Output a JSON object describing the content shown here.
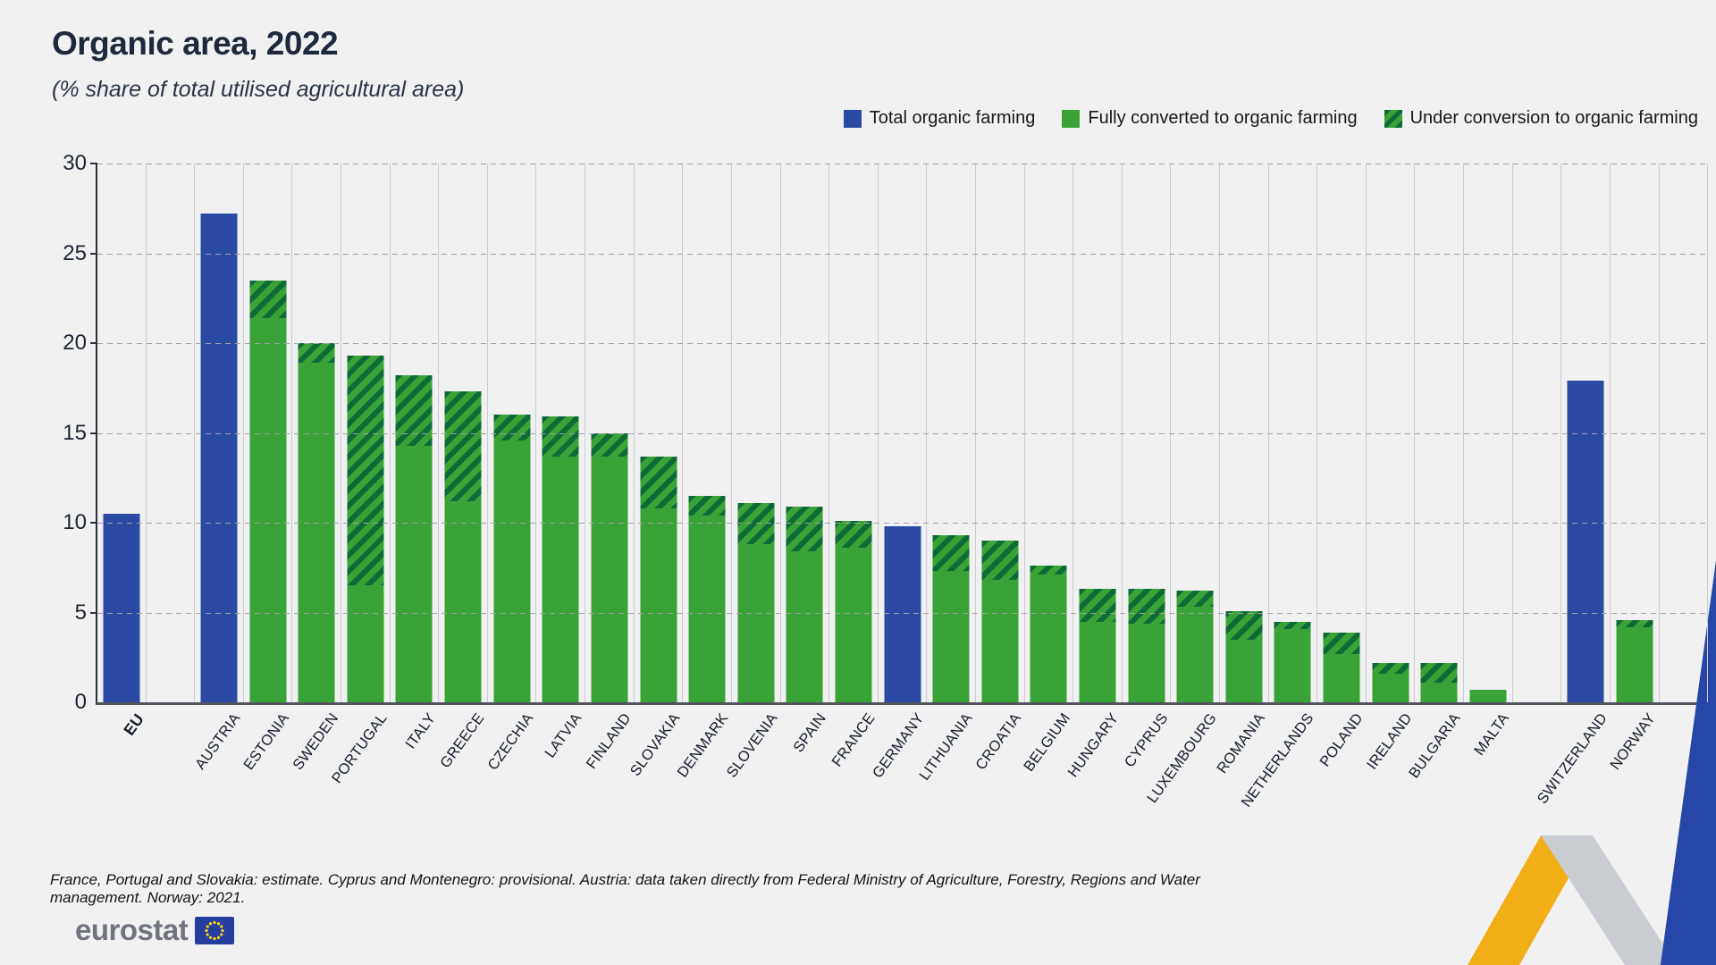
{
  "title": "Organic area, 2022",
  "subtitle": "(% share of total utilised agricultural area)",
  "legend": [
    {
      "label": "Total organic farming",
      "swatch": "blue-solid"
    },
    {
      "label": "Fully converted to organic farming",
      "swatch": "green-solid"
    },
    {
      "label": "Under conversion to organic farming",
      "swatch": "green-hatched"
    }
  ],
  "colors": {
    "total_blue": "#2b4aa3",
    "converted_green": "#3aa337",
    "under_conversion_dark_green": "#0e6b38",
    "ribbon_yellow": "#f2ae16",
    "ribbon_blue": "#2747a8"
  },
  "y_axis": {
    "ticks": [
      0,
      5,
      10,
      15,
      20,
      25,
      30
    ],
    "max": 30
  },
  "chart_data": {
    "type": "bar",
    "stacked": true,
    "title": "Organic area, 2022",
    "ylabel": "% share of total utilised agricultural area",
    "ylim": [
      0,
      30
    ],
    "grid": "dashed-horizontal",
    "legend_position": "top-right",
    "series_labels": [
      "Total organic farming",
      "Fully converted to organic farming",
      "Under conversion to organic farming"
    ],
    "countries": [
      {
        "name": "EU",
        "style": "blue",
        "total": 10.5,
        "converted": null,
        "under": null,
        "spacer_before": false
      },
      {
        "name": "AUSTRIA",
        "style": "blue",
        "total": 27.2,
        "converted": null,
        "under": null,
        "spacer_before": true
      },
      {
        "name": "ESTONIA",
        "style": "green",
        "total": 23.5,
        "converted": 21.4,
        "under": 2.1,
        "spacer_before": false
      },
      {
        "name": "SWEDEN",
        "style": "green",
        "total": 20.0,
        "converted": 18.9,
        "under": 1.1,
        "spacer_before": false
      },
      {
        "name": "PORTUGAL",
        "style": "green",
        "total": 19.3,
        "converted": 6.5,
        "under": 12.8,
        "spacer_before": false
      },
      {
        "name": "ITALY",
        "style": "green",
        "total": 18.2,
        "converted": 14.3,
        "under": 3.9,
        "spacer_before": false
      },
      {
        "name": "GREECE",
        "style": "green",
        "total": 17.3,
        "converted": 11.2,
        "under": 6.1,
        "spacer_before": false
      },
      {
        "name": "CZECHIA",
        "style": "green",
        "total": 16.0,
        "converted": 14.6,
        "under": 1.4,
        "spacer_before": false
      },
      {
        "name": "LATVIA",
        "style": "green",
        "total": 15.9,
        "converted": 13.7,
        "under": 2.2,
        "spacer_before": false
      },
      {
        "name": "FINLAND",
        "style": "green",
        "total": 15.0,
        "converted": 13.7,
        "under": 1.3,
        "spacer_before": false
      },
      {
        "name": "SLOVAKIA",
        "style": "green",
        "total": 13.7,
        "converted": 10.8,
        "under": 2.9,
        "spacer_before": false
      },
      {
        "name": "DENMARK",
        "style": "green",
        "total": 11.5,
        "converted": 10.4,
        "under": 1.1,
        "spacer_before": false
      },
      {
        "name": "SLOVENIA",
        "style": "green",
        "total": 11.1,
        "converted": 8.8,
        "under": 2.3,
        "spacer_before": false
      },
      {
        "name": "SPAIN",
        "style": "green",
        "total": 10.9,
        "converted": 8.4,
        "under": 2.5,
        "spacer_before": false
      },
      {
        "name": "FRANCE",
        "style": "green",
        "total": 10.1,
        "converted": 8.6,
        "under": 1.5,
        "spacer_before": false
      },
      {
        "name": "GERMANY",
        "style": "blue",
        "total": 9.8,
        "converted": null,
        "under": null,
        "spacer_before": false
      },
      {
        "name": "LITHUANIA",
        "style": "green",
        "total": 9.3,
        "converted": 7.3,
        "under": 2.0,
        "spacer_before": false
      },
      {
        "name": "CROATIA",
        "style": "green",
        "total": 9.0,
        "converted": 6.8,
        "under": 2.2,
        "spacer_before": false
      },
      {
        "name": "BELGIUM",
        "style": "green",
        "total": 7.6,
        "converted": 7.1,
        "under": 0.5,
        "spacer_before": false
      },
      {
        "name": "HUNGARY",
        "style": "green",
        "total": 6.3,
        "converted": 4.5,
        "under": 1.8,
        "spacer_before": false
      },
      {
        "name": "CYPRUS",
        "style": "green",
        "total": 6.3,
        "converted": 4.4,
        "under": 1.9,
        "spacer_before": false
      },
      {
        "name": "LUXEMBOURG",
        "style": "green",
        "total": 6.2,
        "converted": 5.3,
        "under": 0.9,
        "spacer_before": false
      },
      {
        "name": "ROMANIA",
        "style": "green",
        "total": 5.1,
        "converted": 3.5,
        "under": 1.6,
        "spacer_before": false
      },
      {
        "name": "NETHERLANDS",
        "style": "green",
        "total": 4.5,
        "converted": 4.1,
        "under": 0.4,
        "spacer_before": false
      },
      {
        "name": "POLAND",
        "style": "green",
        "total": 3.9,
        "converted": 2.7,
        "under": 1.2,
        "spacer_before": false
      },
      {
        "name": "IRELAND",
        "style": "green",
        "total": 2.2,
        "converted": 1.6,
        "under": 0.6,
        "spacer_before": false
      },
      {
        "name": "BULGARIA",
        "style": "green",
        "total": 2.2,
        "converted": 1.1,
        "under": 1.1,
        "spacer_before": false
      },
      {
        "name": "MALTA",
        "style": "green",
        "total": 0.7,
        "converted": 0.7,
        "under": 0.0,
        "spacer_before": false
      },
      {
        "name": "SWITZERLAND",
        "style": "blue",
        "total": 17.9,
        "converted": null,
        "under": null,
        "spacer_before": true
      },
      {
        "name": "NORWAY",
        "style": "green",
        "total": 4.6,
        "converted": 4.2,
        "under": 0.4,
        "spacer_before": false
      }
    ]
  },
  "footnote": "France, Portugal and Slovakia: estimate. Cyprus and Montenegro: provisional. Austria: data taken directly from Federal Ministry of Agriculture, Forestry, Regions and Water management. Norway: 2021.",
  "logo": {
    "text": "eurostat"
  }
}
